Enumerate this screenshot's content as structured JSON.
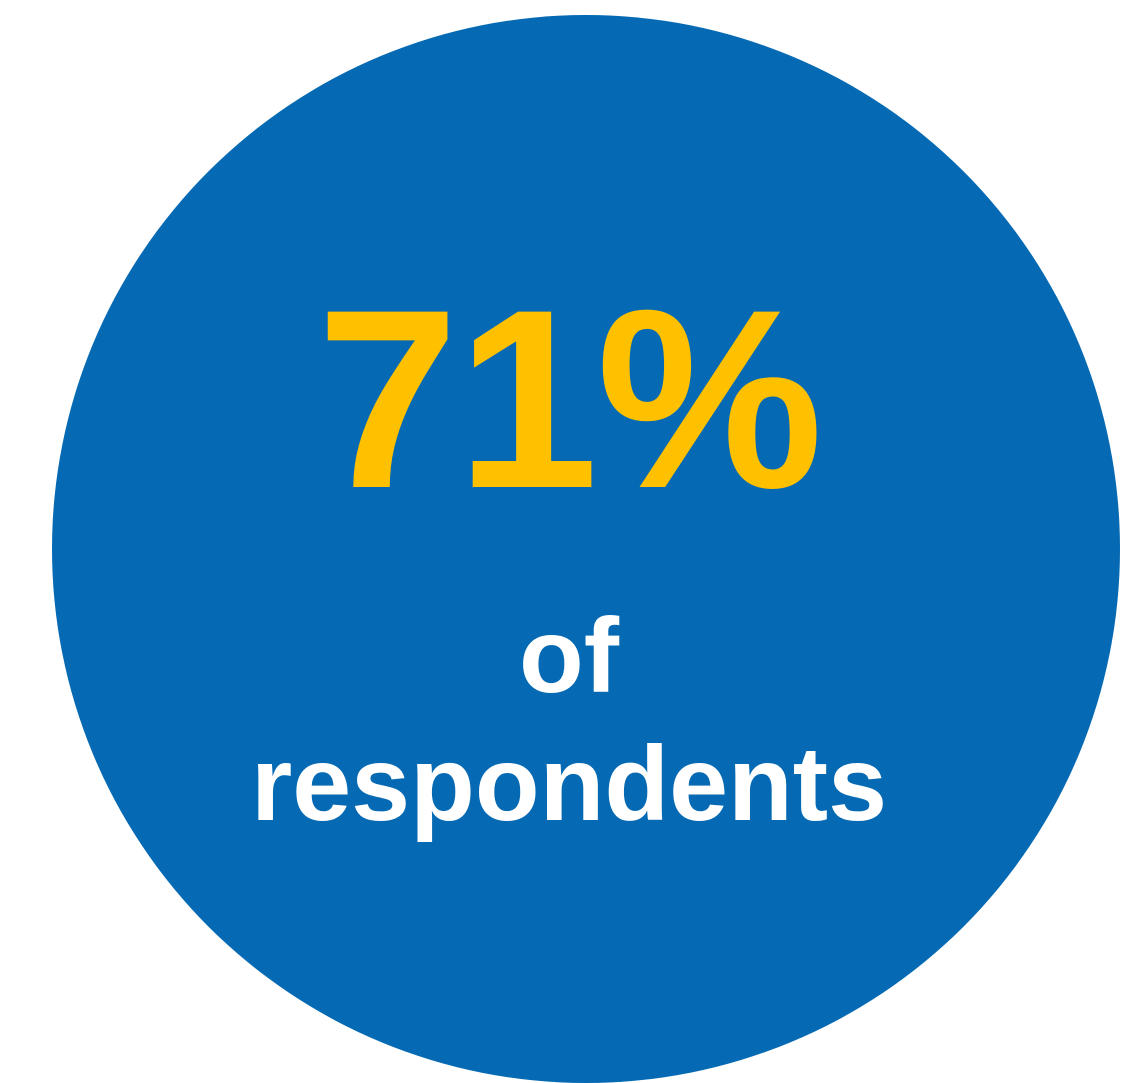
{
  "stat": {
    "value": "71%",
    "caption_line1": "of",
    "caption_line2": "respondents"
  },
  "colors": {
    "circle": "#056ab3",
    "value": "#ffc000",
    "caption": "#ffffff",
    "background": "#ffffff"
  }
}
